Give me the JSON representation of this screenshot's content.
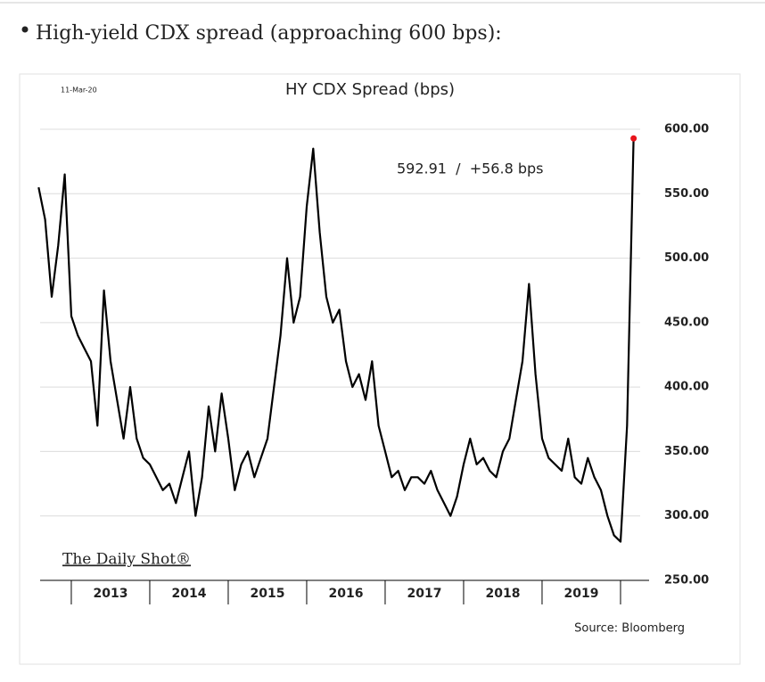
{
  "bullet": "High-yield CDX spread (approaching 600 bps):",
  "chart_data": {
    "type": "line",
    "title": "HY CDX Spread (bps)",
    "date": "11-Mar-20",
    "annotation": "592.91  /  +56.8 bps",
    "logo": "The Daily Shot®",
    "source": "Source: Bloomberg",
    "xlabels": [
      "2013",
      "2014",
      "2015",
      "2016",
      "2017",
      "2018",
      "2019"
    ],
    "color": "#000000",
    "last_point_color": "#e8141b",
    "values": [
      555,
      530,
      470,
      510,
      565,
      455,
      440,
      430,
      420,
      370,
      475,
      420,
      390,
      360,
      400,
      360,
      345,
      340,
      330,
      320,
      325,
      310,
      330,
      350,
      300,
      330,
      385,
      350,
      395,
      360,
      320,
      340,
      350,
      330,
      345,
      360,
      400,
      440,
      500,
      450,
      470,
      540,
      585,
      520,
      470,
      450,
      460,
      420,
      400,
      410,
      390,
      420,
      370,
      350,
      330,
      335,
      320,
      330,
      330,
      325,
      335,
      320,
      310,
      300,
      315,
      340,
      360,
      340,
      345,
      335,
      330,
      350,
      360,
      390,
      420,
      480,
      410,
      360,
      345,
      340,
      335,
      360,
      330,
      325,
      345,
      330,
      320,
      300,
      285,
      280,
      370,
      592.91
    ],
    "ylim": [
      250,
      600
    ],
    "yticks": [
      {
        "value": 250,
        "label": "250.00"
      },
      {
        "value": 300,
        "label": "300.00"
      },
      {
        "value": 350,
        "label": "350.00"
      },
      {
        "value": 400,
        "label": "400.00"
      },
      {
        "value": 450,
        "label": "450.00"
      },
      {
        "value": 500,
        "label": "500.00"
      },
      {
        "value": 550,
        "label": "550.00"
      },
      {
        "value": 600,
        "label": "600.00"
      }
    ],
    "grid": true
  }
}
